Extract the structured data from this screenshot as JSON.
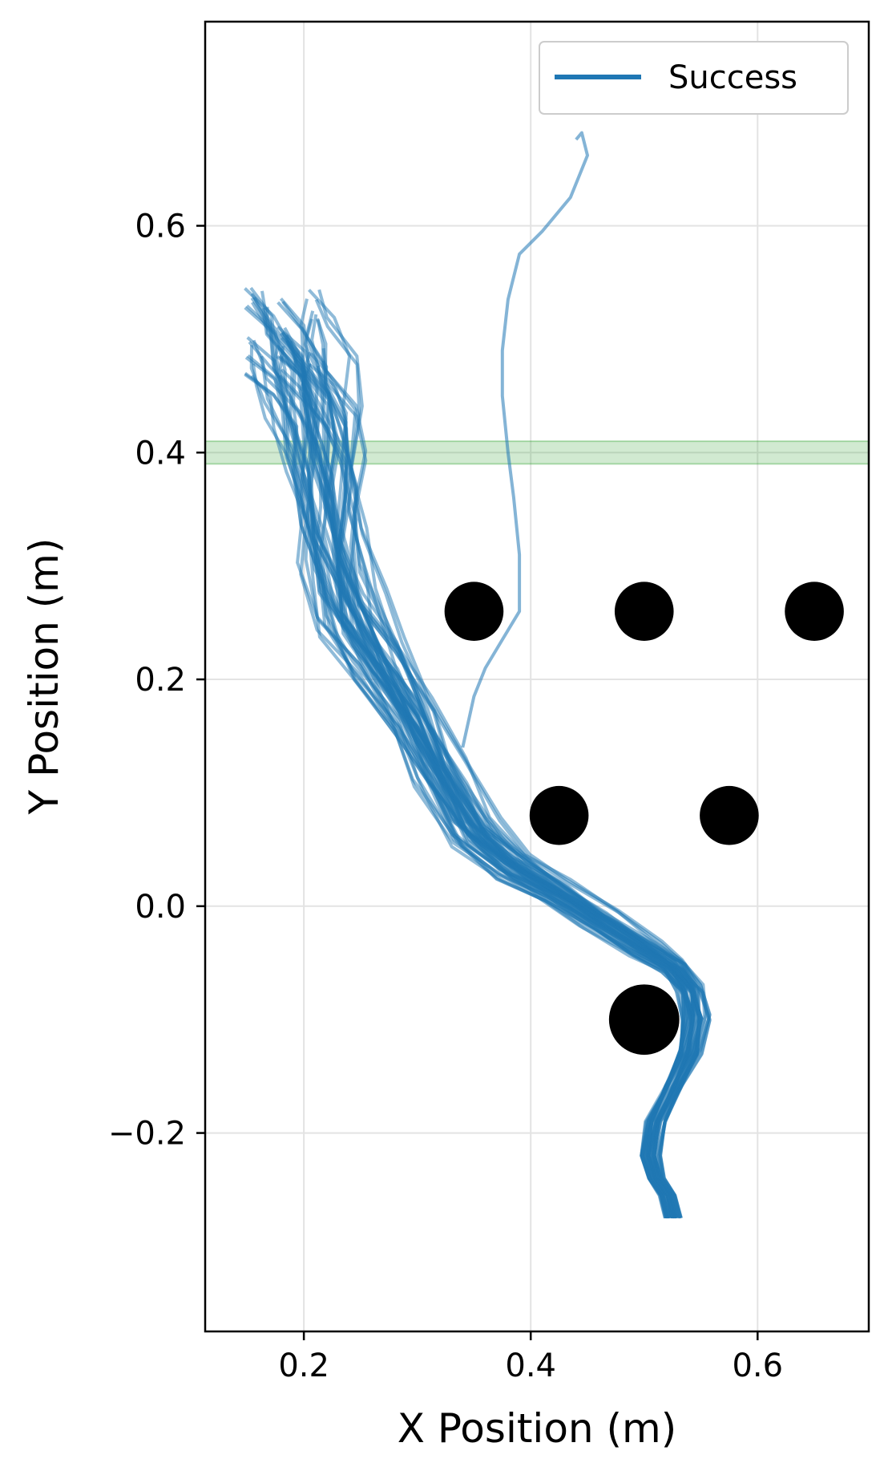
{
  "chart_data": {
    "type": "line",
    "title": "",
    "xlabel": "X Position (m)",
    "ylabel": "Y Position (m)",
    "xlim": [
      0.113,
      0.698
    ],
    "ylim": [
      -0.375,
      0.78
    ],
    "xticks": [
      0.2,
      0.4,
      0.6
    ],
    "xtick_labels": [
      "0.2",
      "0.4",
      "0.6"
    ],
    "yticks": [
      -0.2,
      0.0,
      0.2,
      0.4,
      0.6
    ],
    "ytick_labels": [
      "−0.2",
      "0.0",
      "0.2",
      "0.4",
      "0.6"
    ],
    "grid": true,
    "legend": {
      "placement": "top-right",
      "entries": [
        {
          "label": "Success",
          "color": "#1f77b4"
        }
      ]
    },
    "goal_band": {
      "y_min": 0.39,
      "y_max": 0.41,
      "color": "#2ca02c"
    },
    "obstacles": [
      {
        "x": 0.35,
        "y": 0.26,
        "r": 0.026
      },
      {
        "x": 0.5,
        "y": 0.26,
        "r": 0.026
      },
      {
        "x": 0.65,
        "y": 0.26,
        "r": 0.026
      },
      {
        "x": 0.425,
        "y": 0.08,
        "r": 0.026
      },
      {
        "x": 0.575,
        "y": 0.08,
        "r": 0.026
      },
      {
        "x": 0.5,
        "y": -0.1,
        "r": 0.031
      }
    ],
    "series": [
      {
        "label": "Success",
        "color": "#1f77b4",
        "x": [
          0.525,
          0.52,
          0.51,
          0.505,
          0.51,
          0.525,
          0.54,
          0.545,
          0.54,
          0.525,
          0.5,
          0.46,
          0.42,
          0.385,
          0.35,
          0.32,
          0.295,
          0.265,
          0.24,
          0.225,
          0.22,
          0.215,
          0.205,
          0.19,
          0.18
        ],
        "y": [
          -0.275,
          -0.255,
          -0.24,
          -0.22,
          -0.19,
          -0.16,
          -0.13,
          -0.1,
          -0.075,
          -0.055,
          -0.04,
          -0.015,
          0.01,
          0.03,
          0.06,
          0.11,
          0.16,
          0.21,
          0.25,
          0.3,
          0.35,
          0.4,
          0.44,
          0.47,
          0.49
        ]
      },
      {
        "label": "Success",
        "color": "#1f77b4",
        "x": [
          0.34,
          0.35,
          0.36,
          0.375,
          0.39,
          0.39,
          0.385,
          0.38,
          0.375,
          0.375,
          0.38,
          0.39,
          0.41,
          0.435,
          0.45,
          0.445,
          0.44
        ],
        "y": [
          0.14,
          0.185,
          0.21,
          0.235,
          0.26,
          0.31,
          0.36,
          0.4,
          0.45,
          0.49,
          0.535,
          0.575,
          0.595,
          0.625,
          0.662,
          0.682,
          0.676
        ]
      }
    ]
  }
}
